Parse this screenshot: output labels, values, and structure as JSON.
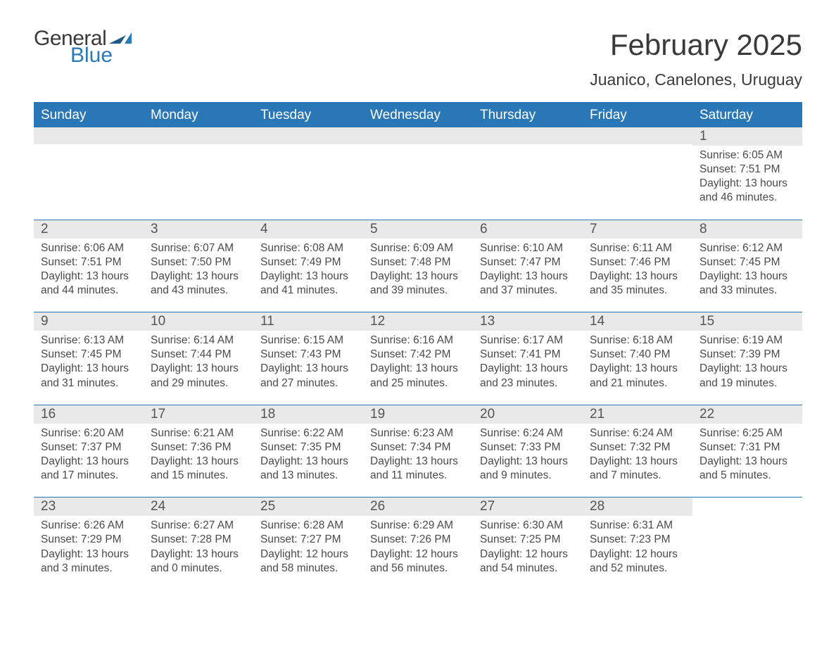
{
  "logo": {
    "word1": "General",
    "word2": "Blue",
    "flag_color": "#2a7ab8"
  },
  "header": {
    "title": "February 2025",
    "location": "Juanico, Canelones, Uruguay"
  },
  "colors": {
    "header_bg": "#2977b7",
    "header_text": "#ffffff",
    "band_bg": "#e9e9e9",
    "border": "#2977b7",
    "text": "#4a4a4a"
  },
  "weekdays": [
    "Sunday",
    "Monday",
    "Tuesday",
    "Wednesday",
    "Thursday",
    "Friday",
    "Saturday"
  ],
  "labels": {
    "sunrise": "Sunrise:",
    "sunset": "Sunset:",
    "daylight": "Daylight:"
  },
  "weeks": [
    [
      {
        "empty": true
      },
      {
        "empty": true
      },
      {
        "empty": true
      },
      {
        "empty": true
      },
      {
        "empty": true
      },
      {
        "empty": true
      },
      {
        "day": "1",
        "sunrise": "6:05 AM",
        "sunset": "7:51 PM",
        "daylight": "13 hours and 46 minutes."
      }
    ],
    [
      {
        "day": "2",
        "sunrise": "6:06 AM",
        "sunset": "7:51 PM",
        "daylight": "13 hours and 44 minutes."
      },
      {
        "day": "3",
        "sunrise": "6:07 AM",
        "sunset": "7:50 PM",
        "daylight": "13 hours and 43 minutes."
      },
      {
        "day": "4",
        "sunrise": "6:08 AM",
        "sunset": "7:49 PM",
        "daylight": "13 hours and 41 minutes."
      },
      {
        "day": "5",
        "sunrise": "6:09 AM",
        "sunset": "7:48 PM",
        "daylight": "13 hours and 39 minutes."
      },
      {
        "day": "6",
        "sunrise": "6:10 AM",
        "sunset": "7:47 PM",
        "daylight": "13 hours and 37 minutes."
      },
      {
        "day": "7",
        "sunrise": "6:11 AM",
        "sunset": "7:46 PM",
        "daylight": "13 hours and 35 minutes."
      },
      {
        "day": "8",
        "sunrise": "6:12 AM",
        "sunset": "7:45 PM",
        "daylight": "13 hours and 33 minutes."
      }
    ],
    [
      {
        "day": "9",
        "sunrise": "6:13 AM",
        "sunset": "7:45 PM",
        "daylight": "13 hours and 31 minutes."
      },
      {
        "day": "10",
        "sunrise": "6:14 AM",
        "sunset": "7:44 PM",
        "daylight": "13 hours and 29 minutes."
      },
      {
        "day": "11",
        "sunrise": "6:15 AM",
        "sunset": "7:43 PM",
        "daylight": "13 hours and 27 minutes."
      },
      {
        "day": "12",
        "sunrise": "6:16 AM",
        "sunset": "7:42 PM",
        "daylight": "13 hours and 25 minutes."
      },
      {
        "day": "13",
        "sunrise": "6:17 AM",
        "sunset": "7:41 PM",
        "daylight": "13 hours and 23 minutes."
      },
      {
        "day": "14",
        "sunrise": "6:18 AM",
        "sunset": "7:40 PM",
        "daylight": "13 hours and 21 minutes."
      },
      {
        "day": "15",
        "sunrise": "6:19 AM",
        "sunset": "7:39 PM",
        "daylight": "13 hours and 19 minutes."
      }
    ],
    [
      {
        "day": "16",
        "sunrise": "6:20 AM",
        "sunset": "7:37 PM",
        "daylight": "13 hours and 17 minutes."
      },
      {
        "day": "17",
        "sunrise": "6:21 AM",
        "sunset": "7:36 PM",
        "daylight": "13 hours and 15 minutes."
      },
      {
        "day": "18",
        "sunrise": "6:22 AM",
        "sunset": "7:35 PM",
        "daylight": "13 hours and 13 minutes."
      },
      {
        "day": "19",
        "sunrise": "6:23 AM",
        "sunset": "7:34 PM",
        "daylight": "13 hours and 11 minutes."
      },
      {
        "day": "20",
        "sunrise": "6:24 AM",
        "sunset": "7:33 PM",
        "daylight": "13 hours and 9 minutes."
      },
      {
        "day": "21",
        "sunrise": "6:24 AM",
        "sunset": "7:32 PM",
        "daylight": "13 hours and 7 minutes."
      },
      {
        "day": "22",
        "sunrise": "6:25 AM",
        "sunset": "7:31 PM",
        "daylight": "13 hours and 5 minutes."
      }
    ],
    [
      {
        "day": "23",
        "sunrise": "6:26 AM",
        "sunset": "7:29 PM",
        "daylight": "13 hours and 3 minutes."
      },
      {
        "day": "24",
        "sunrise": "6:27 AM",
        "sunset": "7:28 PM",
        "daylight": "13 hours and 0 minutes."
      },
      {
        "day": "25",
        "sunrise": "6:28 AM",
        "sunset": "7:27 PM",
        "daylight": "12 hours and 58 minutes."
      },
      {
        "day": "26",
        "sunrise": "6:29 AM",
        "sunset": "7:26 PM",
        "daylight": "12 hours and 56 minutes."
      },
      {
        "day": "27",
        "sunrise": "6:30 AM",
        "sunset": "7:25 PM",
        "daylight": "12 hours and 54 minutes."
      },
      {
        "day": "28",
        "sunrise": "6:31 AM",
        "sunset": "7:23 PM",
        "daylight": "12 hours and 52 minutes."
      },
      {
        "empty": true,
        "noband": true
      }
    ]
  ]
}
